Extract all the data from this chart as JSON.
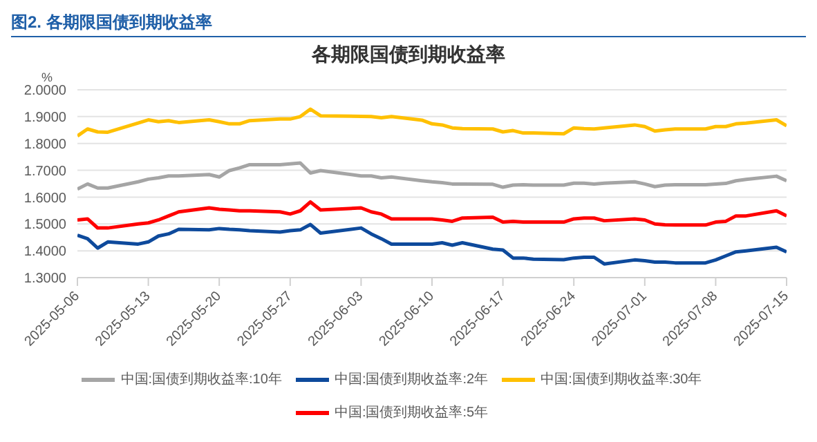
{
  "chart_data": {
    "type": "line",
    "title": "图2.  各期限国债到期收益率",
    "subtitle": "各期限国债到期收益率",
    "ylabel": "%",
    "x": [
      "2025-05-06",
      "2025-05-07",
      "2025-05-08",
      "2025-05-09",
      "2025-05-12",
      "2025-05-13",
      "2025-05-14",
      "2025-05-15",
      "2025-05-16",
      "2025-05-19",
      "2025-05-20",
      "2025-05-21",
      "2025-05-22",
      "2025-05-23",
      "2025-05-26",
      "2025-05-27",
      "2025-05-28",
      "2025-05-29",
      "2025-05-30",
      "2025-06-03",
      "2025-06-04",
      "2025-06-05",
      "2025-06-06",
      "2025-06-09",
      "2025-06-10",
      "2025-06-11",
      "2025-06-12",
      "2025-06-13",
      "2025-06-16",
      "2025-06-17",
      "2025-06-18",
      "2025-06-19",
      "2025-06-20",
      "2025-06-23",
      "2025-06-24",
      "2025-06-25",
      "2025-06-26",
      "2025-06-27",
      "2025-06-30",
      "2025-07-01",
      "2025-07-02",
      "2025-07-03",
      "2025-07-04",
      "2025-07-07",
      "2025-07-08",
      "2025-07-09",
      "2025-07-10",
      "2025-07-11",
      "2025-07-14",
      "2025-07-15"
    ],
    "series": [
      {
        "name": "中国:国债到期收益率:2年",
        "color": "#0e4a9c",
        "values": [
          1.458,
          1.445,
          1.41,
          1.433,
          1.425,
          1.433,
          1.455,
          1.463,
          1.48,
          1.478,
          1.483,
          1.48,
          1.478,
          1.475,
          1.47,
          1.475,
          1.478,
          1.498,
          1.466,
          1.485,
          1.463,
          1.445,
          1.425,
          1.425,
          1.425,
          1.43,
          1.421,
          1.43,
          1.406,
          1.403,
          1.373,
          1.373,
          1.369,
          1.367,
          1.373,
          1.376,
          1.376,
          1.351,
          1.366,
          1.363,
          1.358,
          1.358,
          1.355,
          1.355,
          1.366,
          1.381,
          1.396,
          1.4,
          1.413,
          1.396
        ]
      },
      {
        "name": "中国:国债到期收益率:5年",
        "color": "#ff0000",
        "values": [
          1.515,
          1.519,
          1.485,
          1.485,
          1.5,
          1.504,
          1.515,
          1.53,
          1.545,
          1.56,
          1.555,
          1.552,
          1.549,
          1.549,
          1.545,
          1.537,
          1.549,
          1.582,
          1.552,
          1.56,
          1.545,
          1.537,
          1.519,
          1.519,
          1.519,
          1.515,
          1.51,
          1.522,
          1.525,
          1.507,
          1.51,
          1.507,
          1.507,
          1.507,
          1.519,
          1.522,
          1.522,
          1.512,
          1.519,
          1.515,
          1.5,
          1.497,
          1.496,
          1.496,
          1.507,
          1.51,
          1.53,
          1.53,
          1.549,
          1.53
        ]
      },
      {
        "name": "中国:国债到期收益率:10年",
        "color": "#a5a5a5",
        "values": [
          1.63,
          1.649,
          1.634,
          1.634,
          1.657,
          1.667,
          1.672,
          1.679,
          1.679,
          1.684,
          1.675,
          1.699,
          1.709,
          1.721,
          1.721,
          1.724,
          1.727,
          1.69,
          1.699,
          1.679,
          1.679,
          1.672,
          1.675,
          1.661,
          1.657,
          1.654,
          1.649,
          1.649,
          1.648,
          1.637,
          1.645,
          1.646,
          1.645,
          1.645,
          1.652,
          1.652,
          1.649,
          1.652,
          1.657,
          1.649,
          1.639,
          1.645,
          1.646,
          1.646,
          1.649,
          1.651,
          1.661,
          1.666,
          1.678,
          1.661
        ]
      },
      {
        "name": "中国:国债到期收益率:30年",
        "color": "#ffc000",
        "values": [
          1.828,
          1.854,
          1.843,
          1.842,
          1.876,
          1.888,
          1.881,
          1.885,
          1.878,
          1.888,
          1.881,
          1.873,
          1.873,
          1.885,
          1.891,
          1.891,
          1.9,
          1.928,
          1.903,
          1.901,
          1.9,
          1.896,
          1.9,
          1.887,
          1.873,
          1.869,
          1.858,
          1.855,
          1.854,
          1.843,
          1.848,
          1.839,
          1.839,
          1.836,
          1.858,
          1.855,
          1.854,
          1.858,
          1.869,
          1.863,
          1.846,
          1.851,
          1.854,
          1.854,
          1.863,
          1.863,
          1.873,
          1.876,
          1.888,
          1.866
        ]
      }
    ],
    "ylim": [
      1.3,
      2.0
    ],
    "yticks": [
      {
        "value": 1.3,
        "label": "1.3000"
      },
      {
        "value": 1.4,
        "label": "1.4000"
      },
      {
        "value": 1.5,
        "label": "1.5000"
      },
      {
        "value": 1.6,
        "label": "1.6000"
      },
      {
        "value": 1.7,
        "label": "1.7000"
      },
      {
        "value": 1.8,
        "label": "1.8000"
      },
      {
        "value": 1.9,
        "label": "1.9000"
      },
      {
        "value": 2.0,
        "label": "2.0000"
      }
    ],
    "xlim": [
      "2025-05-06",
      "2025-07-15"
    ],
    "xticks": [
      "2025-05-06",
      "2025-05-13",
      "2025-05-20",
      "2025-05-27",
      "2025-06-03",
      "2025-06-10",
      "2025-06-17",
      "2025-06-24",
      "2025-07-01",
      "2025-07-08",
      "2025-07-15"
    ],
    "grid": "y",
    "legend": "bottom",
    "marker": "none",
    "line_style": "solid"
  }
}
